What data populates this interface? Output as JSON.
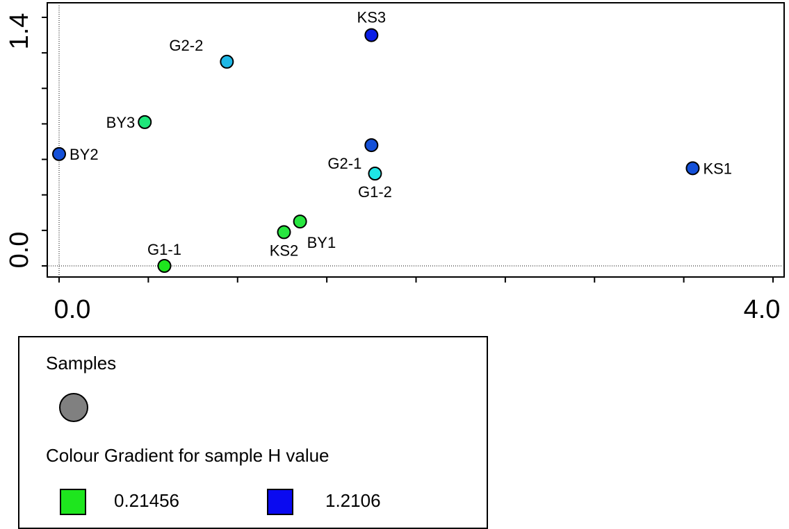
{
  "chart_data": {
    "type": "scatter",
    "title": "",
    "xlabel": "",
    "ylabel": "",
    "xlim": [
      -0.05,
      4.05
    ],
    "ylim": [
      -0.05,
      1.45
    ],
    "x_tick_labels": [
      "0.0",
      "4.0"
    ],
    "y_tick_labels": [
      "0.0",
      "1.4"
    ],
    "points": [
      {
        "label": "KS3",
        "x": 1.75,
        "y": 1.3,
        "color": "#0a1ee6"
      },
      {
        "label": "G2-2",
        "x": 0.94,
        "y": 1.15,
        "color": "#1fb8e6"
      },
      {
        "label": "BY3",
        "x": 0.48,
        "y": 0.81,
        "color": "#1ee67a"
      },
      {
        "label": "BY2",
        "x": 0.0,
        "y": 0.63,
        "color": "#1450d8"
      },
      {
        "label": "G2-1",
        "x": 1.75,
        "y": 0.68,
        "color": "#1450d8"
      },
      {
        "label": "G1-2",
        "x": 1.77,
        "y": 0.52,
        "color": "#1ee6e6"
      },
      {
        "label": "KS1",
        "x": 3.55,
        "y": 0.55,
        "color": "#1450d8"
      },
      {
        "label": "BY1",
        "x": 1.35,
        "y": 0.25,
        "color": "#28e640"
      },
      {
        "label": "KS2",
        "x": 1.26,
        "y": 0.19,
        "color": "#28e640"
      },
      {
        "label": "G1-1",
        "x": 0.59,
        "y": 0.0,
        "color": "#1ee61e"
      }
    ]
  },
  "legend": {
    "title": "Samples",
    "symbol_color": "#808080",
    "gradient_title": "Colour Gradient for sample H value",
    "low": {
      "value": "0.21456",
      "color": "#1ee61e"
    },
    "high": {
      "value": "1.2106",
      "color": "#0a0af0"
    }
  }
}
